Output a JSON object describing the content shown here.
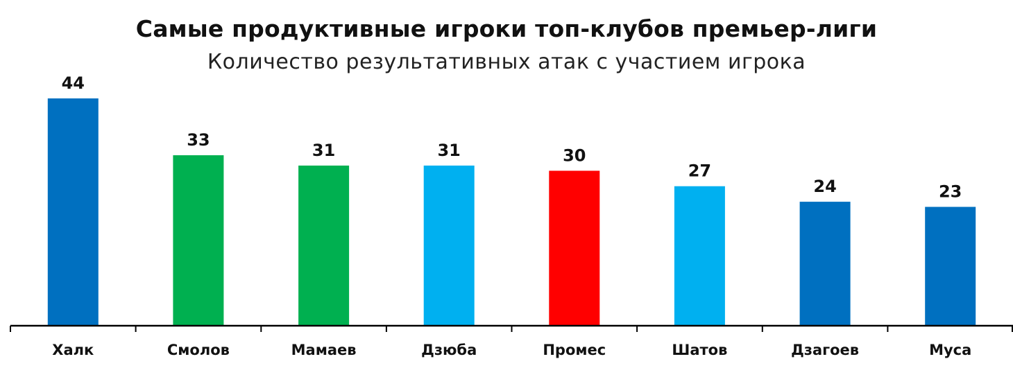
{
  "chart_data": {
    "type": "bar",
    "title": "Самые продуктивные игроки топ-клубов премьер-лиги",
    "subtitle": "Количество результативных атак с участием игрока",
    "categories": [
      "Халк",
      "Смолов",
      "Мамаев",
      "Дзюба",
      "Промес",
      "Шатов",
      "Дзагоев",
      "Муса"
    ],
    "values": [
      44,
      33,
      31,
      31,
      30,
      27,
      24,
      23
    ],
    "bar_colors": [
      "#0070C0",
      "#00B050",
      "#00B050",
      "#00B0F0",
      "#FF0000",
      "#00B0F0",
      "#0070C0",
      "#0070C0"
    ],
    "ylim": [
      0,
      44
    ],
    "grid": false,
    "data_labels": true,
    "xlabel": "",
    "ylabel": ""
  },
  "colors": {
    "axis": "#000000",
    "text": "#111111",
    "background": "#ffffff"
  }
}
